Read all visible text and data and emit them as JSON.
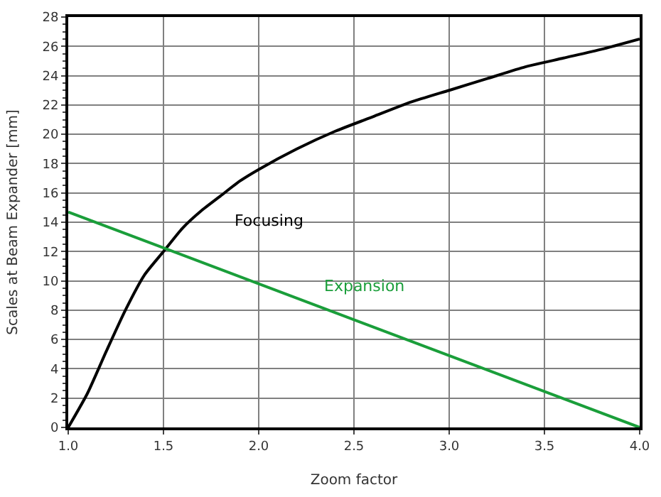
{
  "chart_data": {
    "type": "line",
    "xlabel": "Zoom factor",
    "ylabel": "Scales at Beam Expander [mm]",
    "xlim": [
      1.0,
      4.0
    ],
    "xticks": [
      {
        "value": 1.0,
        "label": "1.0"
      },
      {
        "value": 1.5,
        "label": "1.5"
      },
      {
        "value": 2.0,
        "label": "2.0"
      },
      {
        "value": 2.5,
        "label": "2.5"
      },
      {
        "value": 3.0,
        "label": "3.0"
      },
      {
        "value": 3.5,
        "label": "3.5"
      },
      {
        "value": 4.0,
        "label": "4.0"
      }
    ],
    "ylim": [
      0,
      28
    ],
    "yticks": [
      0,
      2,
      4,
      6,
      8,
      10,
      12,
      14,
      16,
      18,
      20,
      22,
      24,
      26,
      28
    ],
    "grid": true,
    "legend": false,
    "marker": "none",
    "line_style": "solid",
    "series": [
      {
        "name": "Focusing",
        "color": "#000000",
        "x": [
          1.0,
          1.1,
          1.2,
          1.3,
          1.4,
          1.5,
          1.6,
          1.7,
          1.8,
          1.9,
          2.0,
          2.2,
          2.4,
          2.6,
          2.8,
          3.0,
          3.2,
          3.4,
          3.6,
          3.8,
          4.0
        ],
        "values": [
          0,
          2.3,
          5.2,
          8.0,
          10.4,
          12.0,
          13.6,
          14.8,
          15.8,
          16.8,
          17.6,
          19.0,
          20.2,
          21.2,
          22.2,
          23.0,
          23.8,
          24.6,
          25.2,
          25.8,
          26.5
        ]
      },
      {
        "name": "Expansion",
        "color": "#1a9e3a",
        "x": [
          1.0,
          4.0
        ],
        "values": [
          14.7,
          0
        ]
      }
    ]
  }
}
